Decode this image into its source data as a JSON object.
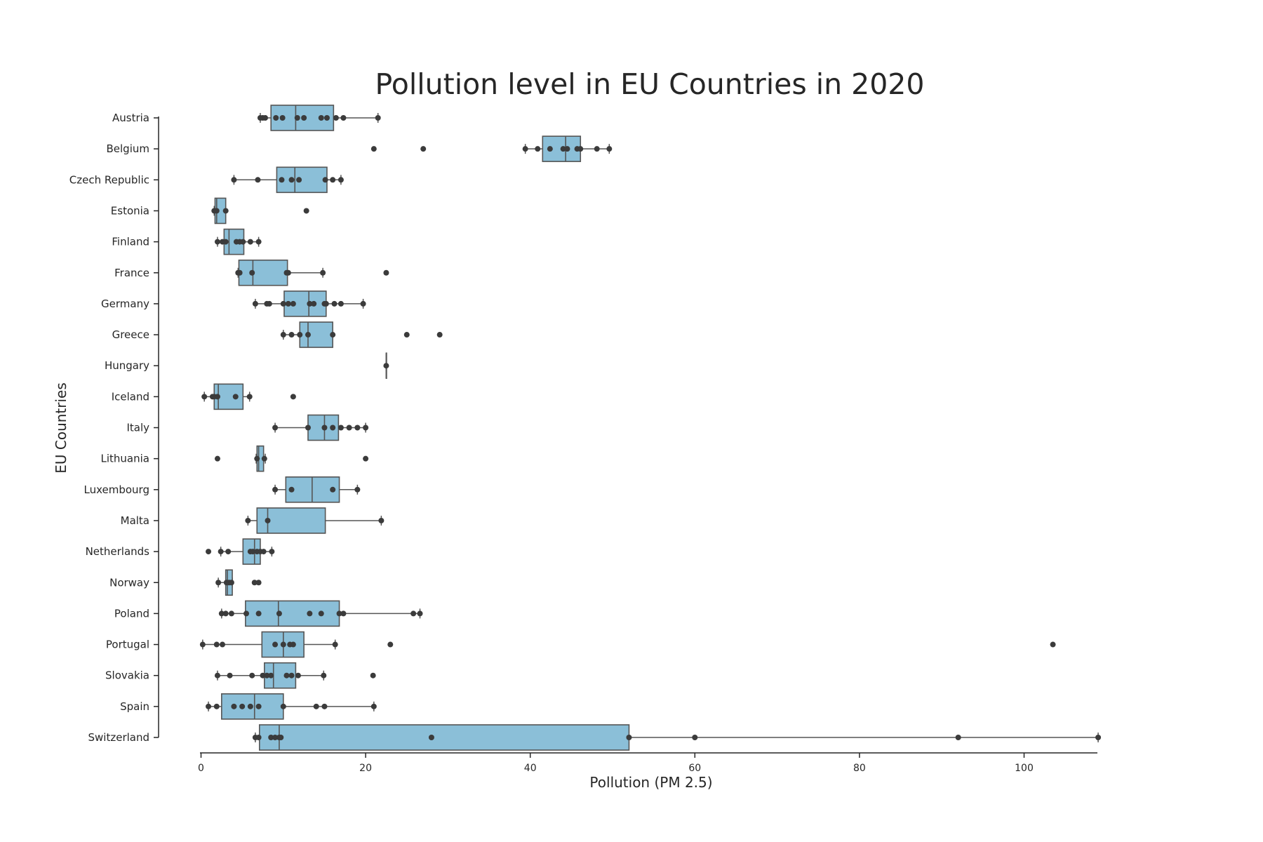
{
  "chart_data": {
    "type": "box",
    "title": "Pollution level in EU Countries in 2020",
    "xlabel": "Pollution (PM 2.5)",
    "ylabel": "EU Countries",
    "xlim": [
      -2,
      110
    ],
    "xticks": [
      0,
      20,
      40,
      60,
      80,
      100
    ],
    "grid": false,
    "box_color": "#8bbfd8",
    "box_edge_color": "#555555",
    "point_color": "#3b3b3b",
    "categories": [
      "Austria",
      "Belgium",
      "Czech Republic",
      "Estonia",
      "Finland",
      "France",
      "Germany",
      "Greece",
      "Hungary",
      "Iceland",
      "Italy",
      "Lithuania",
      "Luxembourg",
      "Malta",
      "Netherlands",
      "Norway",
      "Poland",
      "Portugal",
      "Slovakia",
      "Spain",
      "Switzerland"
    ],
    "boxes": [
      {
        "q1": 8.5,
        "median": 11.5,
        "q3": 16.1,
        "whisker_low": 7.2,
        "whisker_high": 21.5
      },
      {
        "q1": 41.5,
        "median": 44.3,
        "q3": 46.1,
        "whisker_low": 39.4,
        "whisker_high": 49.6
      },
      {
        "q1": 9.2,
        "median": 11.4,
        "q3": 15.3,
        "whisker_low": 4.0,
        "whisker_high": 17.0
      },
      {
        "q1": 1.7,
        "median": 1.9,
        "q3": 3.0,
        "whisker_low": 1.6,
        "whisker_high": 3.0
      },
      {
        "q1": 2.8,
        "median": 3.4,
        "q3": 5.2,
        "whisker_low": 2.0,
        "whisker_high": 7.0
      },
      {
        "q1": 4.6,
        "median": 6.3,
        "q3": 10.5,
        "whisker_low": 4.5,
        "whisker_high": 14.8
      },
      {
        "q1": 10.1,
        "median": 13.1,
        "q3": 15.2,
        "whisker_low": 6.6,
        "whisker_high": 19.7
      },
      {
        "q1": 12.0,
        "median": 13.0,
        "q3": 16.0,
        "whisker_low": 10.0,
        "whisker_high": 16.0
      },
      {
        "q1": 22.5,
        "median": 22.5,
        "q3": 22.5,
        "whisker_low": 22.5,
        "whisker_high": 22.5
      },
      {
        "q1": 1.6,
        "median": 2.1,
        "q3": 5.1,
        "whisker_low": 0.4,
        "whisker_high": 5.9
      },
      {
        "q1": 13.0,
        "median": 15.0,
        "q3": 16.7,
        "whisker_low": 9.0,
        "whisker_high": 20.0
      },
      {
        "q1": 6.8,
        "median": 7.0,
        "q3": 7.6,
        "whisker_low": 6.7,
        "whisker_high": 7.8
      },
      {
        "q1": 10.3,
        "median": 13.5,
        "q3": 16.8,
        "whisker_low": 9.0,
        "whisker_high": 19.0
      },
      {
        "q1": 6.8,
        "median": 8.1,
        "q3": 15.1,
        "whisker_low": 5.7,
        "whisker_high": 21.9
      },
      {
        "q1": 5.1,
        "median": 6.5,
        "q3": 7.2,
        "whisker_low": 2.4,
        "whisker_high": 8.6
      },
      {
        "q1": 3.0,
        "median": 3.2,
        "q3": 3.8,
        "whisker_low": 2.1,
        "whisker_high": 3.8
      },
      {
        "q1": 5.4,
        "median": 9.4,
        "q3": 16.8,
        "whisker_low": 2.5,
        "whisker_high": 26.6
      },
      {
        "q1": 7.4,
        "median": 10.0,
        "q3": 12.5,
        "whisker_low": 0.2,
        "whisker_high": 16.3
      },
      {
        "q1": 7.7,
        "median": 8.8,
        "q3": 11.5,
        "whisker_low": 2.0,
        "whisker_high": 14.9
      },
      {
        "q1": 2.5,
        "median": 6.5,
        "q3": 10.0,
        "whisker_low": 0.9,
        "whisker_high": 21.0
      },
      {
        "q1": 7.1,
        "median": 9.5,
        "q3": 52.0,
        "whisker_low": 6.6,
        "whisker_high": 109.0
      }
    ],
    "points": [
      [
        7.2,
        7.5,
        7.8,
        9.1,
        9.9,
        11.7,
        12.5,
        14.6,
        15.3,
        16.4,
        17.3,
        21.5
      ],
      [
        21.0,
        27.0,
        39.4,
        40.9,
        42.4,
        44.0,
        44.5,
        45.7,
        46.1,
        48.1,
        49.6
      ],
      [
        4.0,
        6.9,
        9.8,
        11.0,
        11.9,
        15.1,
        16.0,
        17.0
      ],
      [
        1.6,
        1.9,
        3.0,
        12.8
      ],
      [
        2.0,
        2.6,
        3.0,
        4.3,
        4.7,
        5.1,
        6.0,
        7.0
      ],
      [
        4.5,
        4.7,
        6.2,
        10.4,
        10.6,
        14.8,
        22.5
      ],
      [
        6.6,
        8.0,
        8.3,
        10.0,
        10.6,
        11.2,
        13.2,
        13.7,
        15.0,
        15.2,
        16.2,
        17.0,
        19.7
      ],
      [
        10.0,
        11.0,
        12.0,
        13.0,
        16.0,
        25.0,
        29.0
      ],
      [
        22.5
      ],
      [
        0.4,
        1.4,
        1.6,
        2.0,
        4.2,
        5.9,
        11.2
      ],
      [
        9.0,
        13.0,
        15.0,
        16.0,
        17.0,
        18.0,
        19.0,
        20.0
      ],
      [
        2.0,
        6.8,
        7.7,
        20.0
      ],
      [
        9.0,
        11.0,
        16.0,
        19.0
      ],
      [
        5.7,
        8.1,
        21.9
      ],
      [
        0.9,
        2.4,
        3.3,
        6.0,
        6.3,
        6.8,
        7.2,
        7.6,
        8.6
      ],
      [
        2.1,
        3.1,
        3.4,
        3.7,
        6.5,
        7.0
      ],
      [
        2.5,
        3.0,
        3.7,
        5.5,
        7.0,
        9.5,
        13.2,
        14.6,
        16.8,
        17.3,
        25.8,
        26.6
      ],
      [
        0.2,
        1.9,
        2.6,
        9.0,
        10.0,
        10.8,
        11.2,
        16.3,
        23.0,
        103.5
      ],
      [
        2.0,
        3.5,
        6.2,
        7.5,
        8.0,
        8.5,
        10.4,
        11.0,
        11.8,
        14.9,
        20.9
      ],
      [
        0.9,
        1.9,
        4.0,
        5.0,
        6.0,
        7.0,
        10.0,
        14.0,
        15.0,
        21.0
      ],
      [
        6.6,
        7.0,
        8.5,
        9.0,
        9.5,
        9.7,
        28.0,
        52.0,
        60.0,
        92.0,
        109.0
      ]
    ]
  }
}
